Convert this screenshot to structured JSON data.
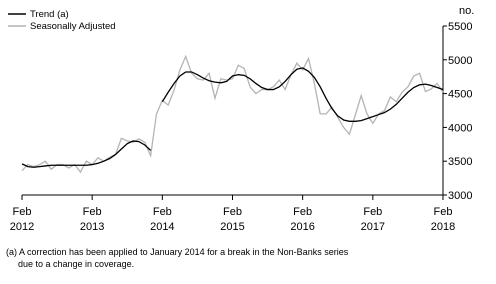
{
  "chart_data": {
    "type": "line",
    "y_label": "no.",
    "categories": [
      "Feb 2012",
      null,
      null,
      null,
      null,
      null,
      null,
      null,
      null,
      null,
      null,
      null,
      "Feb 2013",
      null,
      null,
      null,
      null,
      null,
      null,
      null,
      null,
      null,
      null,
      null,
      "Feb 2014",
      null,
      null,
      null,
      null,
      null,
      null,
      null,
      null,
      null,
      null,
      null,
      "Feb 2015",
      null,
      null,
      null,
      null,
      null,
      null,
      null,
      null,
      null,
      null,
      null,
      "Feb 2016",
      null,
      null,
      null,
      null,
      null,
      null,
      null,
      null,
      null,
      null,
      null,
      "Feb 2017",
      null,
      null,
      null,
      null,
      null,
      null,
      null,
      null,
      null,
      null,
      null,
      "Feb 2018"
    ],
    "series": [
      {
        "name": "Trend (a)",
        "color": "#000000",
        "values": [
          3460,
          3420,
          3410,
          3420,
          3430,
          3440,
          3440,
          3440,
          3440,
          3440,
          3440,
          3440,
          3450,
          3470,
          3500,
          3540,
          3600,
          3680,
          3760,
          3800,
          3790,
          3740,
          3660,
          null,
          4380,
          4520,
          4650,
          4760,
          4820,
          4820,
          4780,
          4730,
          4690,
          4670,
          4660,
          4680,
          4760,
          4780,
          4770,
          4720,
          4650,
          4590,
          4560,
          4560,
          4600,
          4680,
          4780,
          4860,
          4880,
          4830,
          4740,
          4600,
          4430,
          4280,
          4170,
          4110,
          4090,
          4090,
          4100,
          4130,
          4160,
          4190,
          4220,
          4270,
          4340,
          4430,
          4520,
          4590,
          4630,
          4640,
          4620,
          4590,
          4560
        ]
      },
      {
        "name": "Seasonally Adjusted",
        "color": "#b4b4b4",
        "values": [
          3360,
          3450,
          3420,
          3450,
          3500,
          3380,
          3450,
          3450,
          3400,
          3450,
          3340,
          3500,
          3450,
          3550,
          3500,
          3560,
          3600,
          3840,
          3800,
          3780,
          3830,
          3780,
          3580,
          4200,
          4400,
          4330,
          4550,
          4850,
          5050,
          4800,
          4720,
          4700,
          4800,
          4430,
          4720,
          4700,
          4720,
          4920,
          4870,
          4600,
          4500,
          4560,
          4560,
          4600,
          4700,
          4560,
          4780,
          4950,
          4850,
          5020,
          4650,
          4200,
          4200,
          4300,
          4150,
          4000,
          3900,
          4180,
          4470,
          4200,
          4060,
          4200,
          4250,
          4450,
          4380,
          4520,
          4600,
          4760,
          4800,
          4530,
          4570,
          4650,
          4520
        ]
      }
    ],
    "ylim": [
      3000,
      5500
    ],
    "yticks": [
      3000,
      3500,
      4000,
      4500,
      5000,
      5500
    ],
    "footnote": [
      "(a) A correction has been applied to January 2014 for a break in the Non-Banks series",
      "due to a change in coverage."
    ]
  }
}
